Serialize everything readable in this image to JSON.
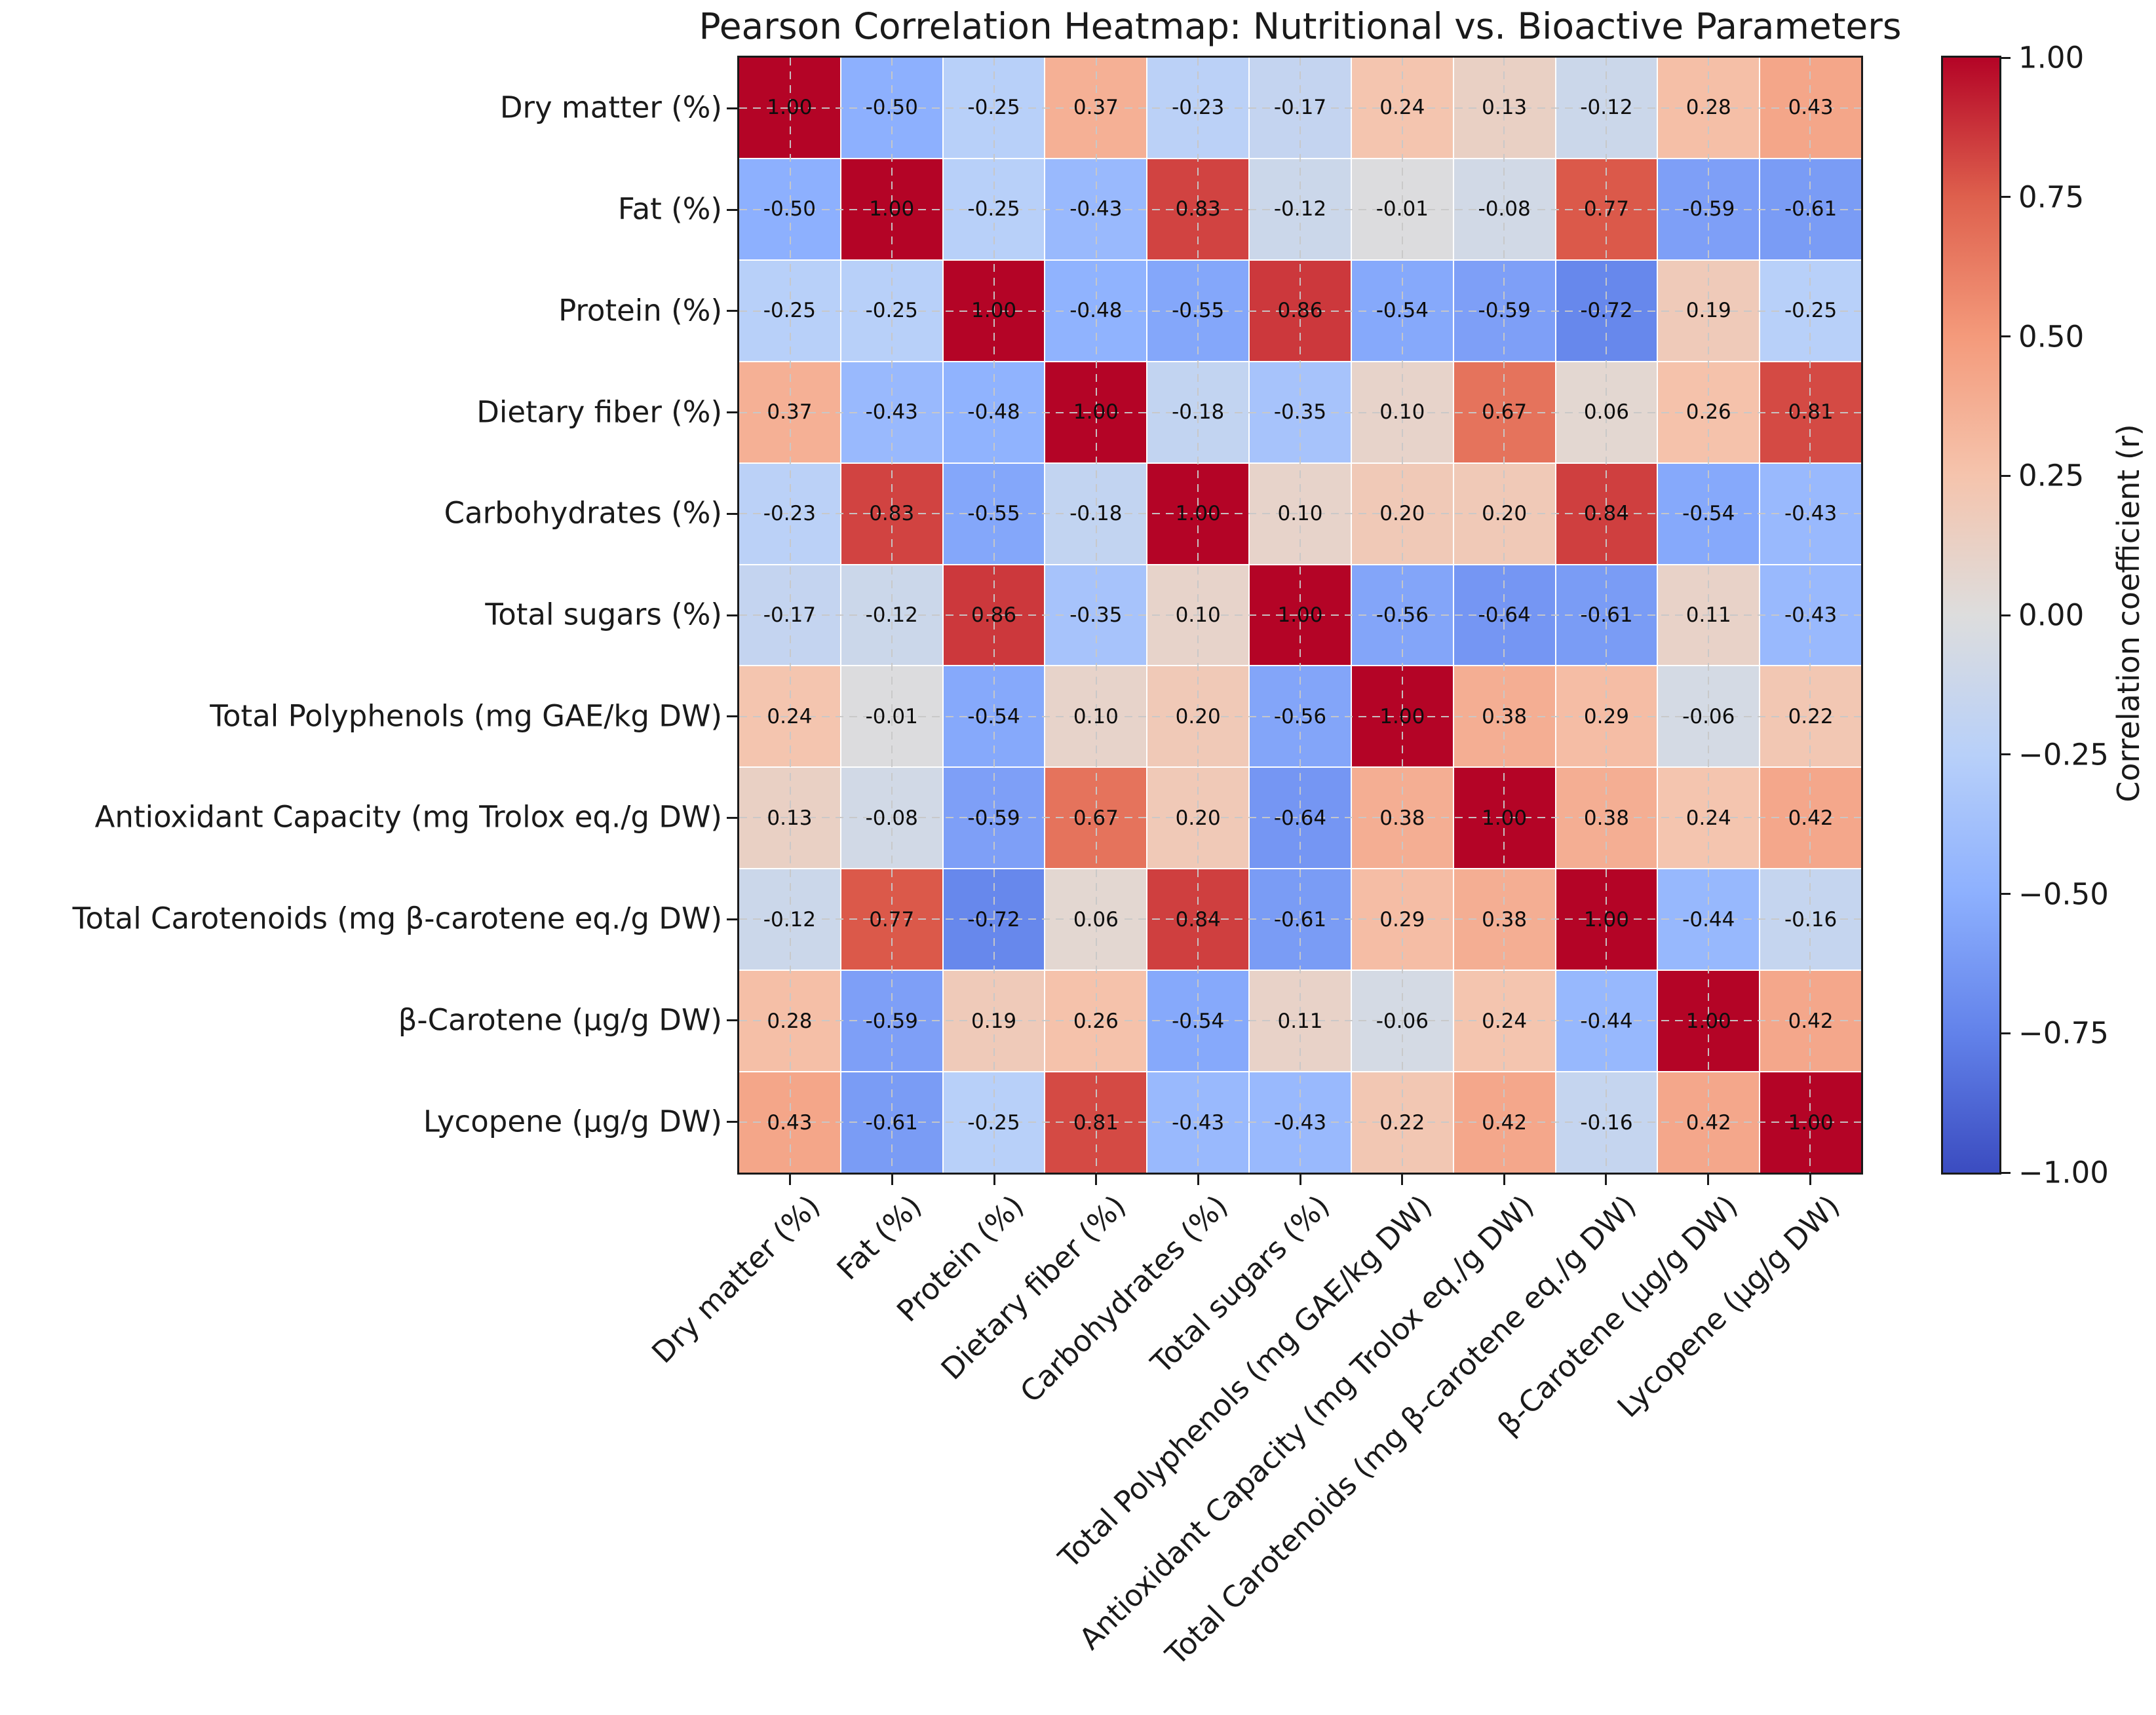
{
  "title": "Pearson Correlation Heatmap: Nutritional vs. Bioactive Parameters",
  "colorbar": {
    "label": "Correlation coefficient (r)",
    "tick_labels": [
      "1.00",
      "0.75",
      "0.50",
      "0.25",
      "0.00",
      "−0.25",
      "−0.50",
      "−0.75",
      "−1.00"
    ],
    "tick_values": [
      1.0,
      0.75,
      0.5,
      0.25,
      0.0,
      -0.25,
      -0.5,
      -0.75,
      -1.0
    ]
  },
  "colors": {
    "cmap_max_red": "#b40426",
    "cmap_mid_gray": "#dddddd",
    "cmap_min_blue": "#3b4cc0",
    "cmap_anchors": [
      [
        0.0,
        59,
        76,
        192
      ],
      [
        0.125,
        98,
        130,
        234
      ],
      [
        0.25,
        141,
        176,
        254
      ],
      [
        0.375,
        184,
        208,
        249
      ],
      [
        0.5,
        221,
        221,
        221
      ],
      [
        0.625,
        245,
        196,
        173
      ],
      [
        0.75,
        244,
        154,
        123
      ],
      [
        0.875,
        222,
        96,
        77
      ],
      [
        1.0,
        180,
        4,
        38
      ]
    ]
  },
  "chart_data": {
    "type": "heatmap",
    "title": "Pearson Correlation Heatmap: Nutritional vs. Bioactive Parameters",
    "colormap": "coolwarm",
    "vmin": -1.0,
    "vmax": 1.0,
    "value_format": ".2f",
    "grid": "dashed gridlines at cell centers",
    "colorbar_label": "Correlation coefficient (r)",
    "colorbar_ticks": [
      1.0,
      0.75,
      0.5,
      0.25,
      0.0,
      -0.25,
      -0.5,
      -0.75,
      -1.0
    ],
    "categories": [
      "Dry matter (%)",
      "Fat (%)",
      "Protein (%)",
      "Dietary fiber (%)",
      "Carbohydrates (%)",
      "Total sugars (%)",
      "Total Polyphenols (mg GAE/kg DW)",
      "Antioxidant Capacity (mg Trolox eq./g DW)",
      "Total Carotenoids (mg β-carotene eq./g DW)",
      "β-Carotene (µg/g DW)",
      "Lycopene (µg/g DW)"
    ],
    "matrix": [
      [
        1.0,
        -0.5,
        -0.25,
        0.37,
        -0.23,
        -0.17,
        0.24,
        0.13,
        -0.12,
        0.28,
        0.43
      ],
      [
        -0.5,
        1.0,
        -0.25,
        -0.43,
        0.83,
        -0.12,
        -0.01,
        -0.08,
        0.77,
        -0.59,
        -0.61
      ],
      [
        -0.25,
        -0.25,
        1.0,
        -0.48,
        -0.55,
        0.86,
        -0.54,
        -0.59,
        -0.72,
        0.19,
        -0.25
      ],
      [
        0.37,
        -0.43,
        -0.48,
        1.0,
        -0.18,
        -0.35,
        0.1,
        0.67,
        0.06,
        0.26,
        0.81
      ],
      [
        -0.23,
        0.83,
        -0.55,
        -0.18,
        1.0,
        0.1,
        0.2,
        0.2,
        0.84,
        -0.54,
        -0.43
      ],
      [
        -0.17,
        -0.12,
        0.86,
        -0.35,
        0.1,
        1.0,
        -0.56,
        -0.64,
        -0.61,
        0.11,
        -0.43
      ],
      [
        0.24,
        -0.01,
        -0.54,
        0.1,
        0.2,
        -0.56,
        1.0,
        0.38,
        0.29,
        -0.06,
        0.22
      ],
      [
        0.13,
        -0.08,
        -0.59,
        0.67,
        0.2,
        -0.64,
        0.38,
        1.0,
        0.38,
        0.24,
        0.42
      ],
      [
        -0.12,
        0.77,
        -0.72,
        0.06,
        0.84,
        -0.61,
        0.29,
        0.38,
        1.0,
        -0.44,
        -0.16
      ],
      [
        0.28,
        -0.59,
        0.19,
        0.26,
        -0.54,
        0.11,
        -0.06,
        0.24,
        -0.44,
        1.0,
        0.42
      ],
      [
        0.43,
        -0.61,
        -0.25,
        0.81,
        -0.43,
        -0.43,
        0.22,
        0.42,
        -0.16,
        0.42,
        1.0
      ]
    ]
  }
}
